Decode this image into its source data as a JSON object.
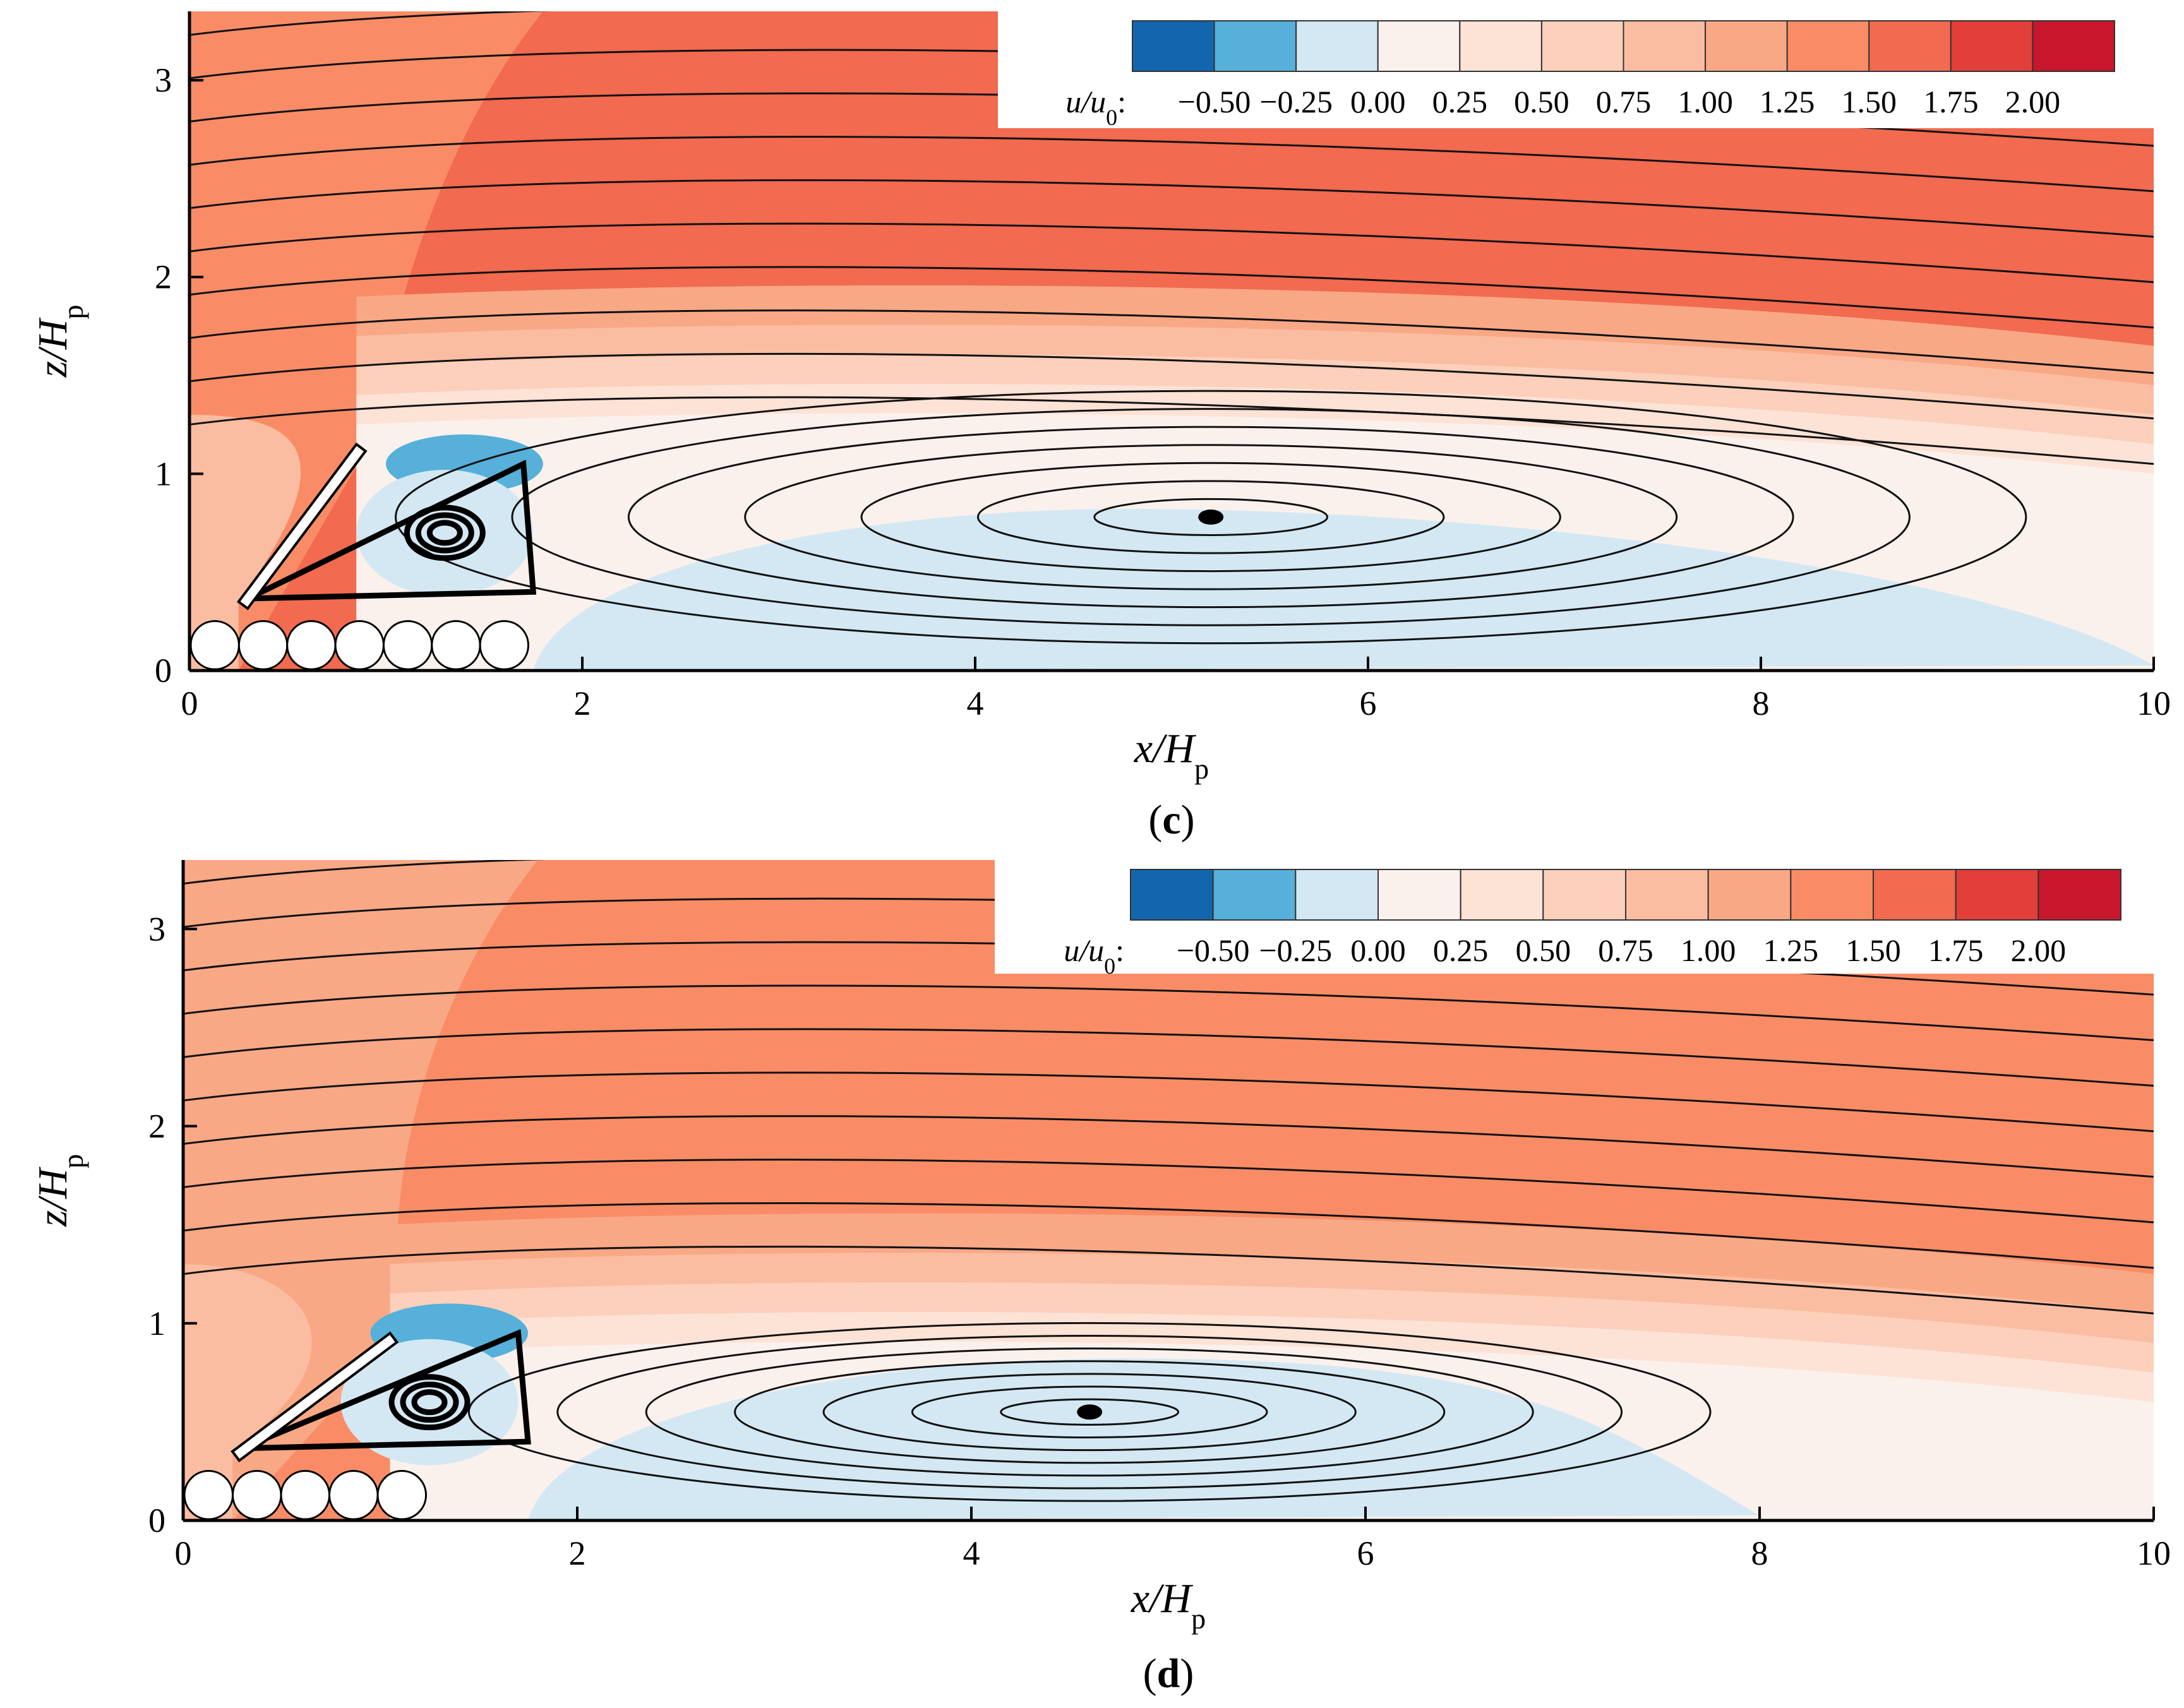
{
  "figure_type": "contour plot with streamlines",
  "colors": {
    "levels": [
      "#1366ad",
      "#56b0d9",
      "#d4e8f3",
      "#fbf1ec",
      "#fde2d6",
      "#fcd0bb",
      "#fbbda1",
      "#f9a886",
      "#f98c66",
      "#f26a4f",
      "#e23f3b",
      "#c8162c"
    ],
    "below_min": "#1366ad",
    "above_max": "#c8162c"
  },
  "chart_data": [
    {
      "type": "contour",
      "panel": "c",
      "caption_open": "(",
      "caption_letter": "c",
      "caption_close": ")",
      "xlabel_var": "x",
      "xlabel_sub": "p",
      "ylabel_var": "z",
      "ylabel_sub": "p",
      "xlim": [
        0,
        10
      ],
      "ylim": [
        0,
        3.35
      ],
      "x_ticks": [
        "0",
        "2",
        "4",
        "6",
        "8",
        "10"
      ],
      "y_ticks": [
        "0",
        "1",
        "2",
        "3"
      ],
      "colorbar": {
        "var": "u",
        "sub": "0",
        "suffix": ":",
        "levels": [
          "−0.50",
          "−0.25",
          "0.00",
          "0.25",
          "0.50",
          "0.75",
          "1.00",
          "1.25",
          "1.50",
          "1.75",
          "2.00"
        ]
      },
      "plate": {
        "x0": 0.25,
        "z0": 0.35,
        "x1": 0.85,
        "z1": 1.15
      },
      "recirculation_main": {
        "reattachment_x": 10.0,
        "center": [
          5.2,
          0.78
        ],
        "height": 1.35
      },
      "secondary_vortex": {
        "center": [
          1.3,
          0.7
        ]
      },
      "fields": {
        "free_stream_level": 9,
        "jet_level": 8,
        "wake_level": 2
      }
    },
    {
      "type": "contour",
      "panel": "d",
      "caption_open": "(",
      "caption_letter": "d",
      "caption_close": ")",
      "xlabel_var": "x",
      "xlabel_sub": "p",
      "ylabel_var": "z",
      "ylabel_sub": "p",
      "xlim": [
        0,
        10
      ],
      "ylim": [
        0,
        3.35
      ],
      "x_ticks": [
        "0",
        "2",
        "4",
        "6",
        "8",
        "10"
      ],
      "y_ticks": [
        "0",
        "1",
        "2",
        "3"
      ],
      "colorbar": {
        "var": "u",
        "sub": "0",
        "suffix": ":",
        "levels": [
          "−0.50",
          "−0.25",
          "0.00",
          "0.25",
          "0.50",
          "0.75",
          "1.00",
          "1.25",
          "1.50",
          "1.75",
          "2.00"
        ]
      },
      "plate": {
        "x0": 0.25,
        "z0": 0.35,
        "x1": 1.05,
        "z1": 0.95
      },
      "recirculation_main": {
        "reattachment_x": 8.0,
        "center": [
          4.6,
          0.55
        ],
        "height": 0.95
      },
      "secondary_vortex": {
        "center": [
          1.25,
          0.6
        ]
      },
      "fields": {
        "free_stream_level": 8,
        "jet_level": 7,
        "wake_level": 2
      }
    }
  ]
}
